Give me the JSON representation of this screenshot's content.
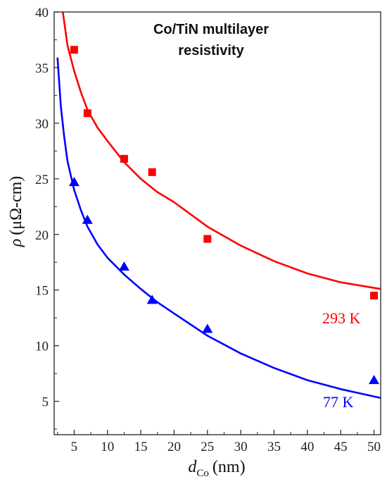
{
  "chart_data": {
    "type": "scatter",
    "title_lines": [
      "Co/TiN multilayer",
      "resistivity"
    ],
    "xlabel": {
      "symbol": "d",
      "subscript": "Co",
      "unit": "(nm)"
    },
    "ylabel": {
      "symbol": "ρ",
      "unit": "(μΩ-cm)"
    },
    "xlim": [
      2,
      51
    ],
    "ylim": [
      2,
      40
    ],
    "x_ticks": [
      5,
      10,
      15,
      20,
      25,
      30,
      35,
      40,
      45,
      50
    ],
    "y_ticks": [
      5,
      10,
      15,
      20,
      25,
      30,
      35,
      40
    ],
    "grid": false,
    "series": [
      {
        "name": "293 K",
        "color": "#ff0000",
        "marker": "square",
        "points": [
          {
            "x": 5,
            "y": 36.6
          },
          {
            "x": 7,
            "y": 30.9
          },
          {
            "x": 12.5,
            "y": 26.8
          },
          {
            "x": 16.7,
            "y": 25.6
          },
          {
            "x": 25,
            "y": 19.6
          },
          {
            "x": 50,
            "y": 14.5
          }
        ],
        "fit": [
          {
            "x": 3.3,
            "y": 40.0
          },
          {
            "x": 4,
            "y": 37.0
          },
          {
            "x": 5,
            "y": 34.7
          },
          {
            "x": 6,
            "y": 32.8
          },
          {
            "x": 7,
            "y": 31.2
          },
          {
            "x": 8.5,
            "y": 29.6
          },
          {
            "x": 10,
            "y": 28.4
          },
          {
            "x": 12.5,
            "y": 26.5
          },
          {
            "x": 15,
            "y": 25.0
          },
          {
            "x": 17.5,
            "y": 23.8
          },
          {
            "x": 20,
            "y": 22.9
          },
          {
            "x": 25,
            "y": 20.7
          },
          {
            "x": 30,
            "y": 19.0
          },
          {
            "x": 35,
            "y": 17.6
          },
          {
            "x": 40,
            "y": 16.5
          },
          {
            "x": 45,
            "y": 15.7
          },
          {
            "x": 51,
            "y": 15.1
          }
        ]
      },
      {
        "name": "77 K",
        "color": "#0000ff",
        "marker": "triangle",
        "points": [
          {
            "x": 5,
            "y": 24.7
          },
          {
            "x": 7,
            "y": 21.3
          },
          {
            "x": 12.5,
            "y": 17.1
          },
          {
            "x": 16.7,
            "y": 14.1
          },
          {
            "x": 25,
            "y": 11.5
          },
          {
            "x": 50,
            "y": 6.9
          }
        ],
        "fit": [
          {
            "x": 2.5,
            "y": 35.9
          },
          {
            "x": 3,
            "y": 31.5
          },
          {
            "x": 3.5,
            "y": 28.8
          },
          {
            "x": 4,
            "y": 26.6
          },
          {
            "x": 5,
            "y": 24.0
          },
          {
            "x": 6,
            "y": 22.2
          },
          {
            "x": 7,
            "y": 20.7
          },
          {
            "x": 8.5,
            "y": 19.1
          },
          {
            "x": 10,
            "y": 17.9
          },
          {
            "x": 12.5,
            "y": 16.4
          },
          {
            "x": 15,
            "y": 15.1
          },
          {
            "x": 17.5,
            "y": 13.9
          },
          {
            "x": 20,
            "y": 12.9
          },
          {
            "x": 25,
            "y": 10.9
          },
          {
            "x": 30,
            "y": 9.3
          },
          {
            "x": 35,
            "y": 8.0
          },
          {
            "x": 40,
            "y": 6.9
          },
          {
            "x": 45,
            "y": 6.1
          },
          {
            "x": 51,
            "y": 5.3
          }
        ]
      }
    ]
  }
}
